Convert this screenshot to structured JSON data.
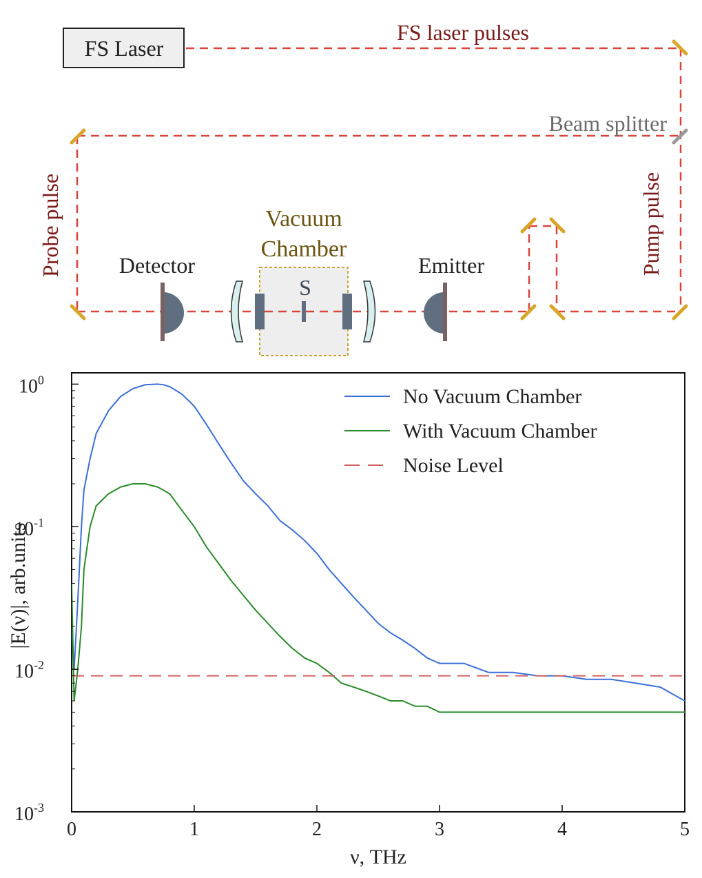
{
  "diagram": {
    "laser_box_label": "FS Laser",
    "fs_pulses_label": "FS laser pulses",
    "beam_splitter_label": "Beam splitter",
    "probe_pulse_label": "Probe pulse",
    "pump_pulse_label": "Pump pulse",
    "detector_label": "Detector",
    "emitter_label": "Emitter",
    "vacuum_label_line1": "Vacuum",
    "vacuum_label_line2": "Chamber",
    "sample_label": "S",
    "colors": {
      "beam": "#d9453b",
      "mirror": "#d9a528",
      "splitter": "#9a9a9a",
      "component": "#5f6f80",
      "chamber_border": "#c9a030",
      "chamber_fill": "#eeeeee",
      "lens": "#d9f0f0"
    }
  },
  "chart_data": {
    "type": "line",
    "xlabel": "ν, THz",
    "ylabel": "|E(ν)|, arb.units",
    "xlim": [
      0,
      5
    ],
    "ylim": [
      0.001,
      1.2
    ],
    "yscale": "log",
    "x_ticks": [
      "0",
      "1",
      "2",
      "3",
      "4",
      "5"
    ],
    "y_ticks": [
      {
        "base": "10",
        "exp": "0"
      },
      {
        "base": "10",
        "exp": "-1"
      },
      {
        "base": "10",
        "exp": "-2"
      },
      {
        "base": "10",
        "exp": "-3"
      }
    ],
    "legend_position": "top-right",
    "series": [
      {
        "name": "No Vacuum Chamber",
        "color": "#3b6fd8",
        "x": [
          0,
          0.02,
          0.05,
          0.08,
          0.1,
          0.15,
          0.2,
          0.3,
          0.4,
          0.5,
          0.6,
          0.7,
          0.75,
          0.8,
          0.9,
          1.0,
          1.1,
          1.2,
          1.3,
          1.4,
          1.5,
          1.6,
          1.7,
          1.8,
          1.9,
          2.0,
          2.1,
          2.2,
          2.3,
          2.4,
          2.5,
          2.6,
          2.7,
          2.8,
          2.9,
          3.0,
          3.2,
          3.4,
          3.6,
          3.8,
          4.0,
          4.2,
          4.4,
          4.6,
          4.8,
          5.0
        ],
        "values": [
          0.02,
          0.01,
          0.03,
          0.1,
          0.18,
          0.3,
          0.45,
          0.65,
          0.82,
          0.93,
          0.99,
          1.0,
          0.99,
          0.96,
          0.85,
          0.7,
          0.52,
          0.38,
          0.28,
          0.21,
          0.17,
          0.14,
          0.11,
          0.095,
          0.08,
          0.065,
          0.05,
          0.04,
          0.032,
          0.026,
          0.021,
          0.018,
          0.016,
          0.014,
          0.012,
          0.011,
          0.011,
          0.0095,
          0.0095,
          0.009,
          0.009,
          0.0085,
          0.0085,
          0.008,
          0.0075,
          0.006
        ]
      },
      {
        "name": "With Vacuum Chamber",
        "color": "#2a8a2a",
        "x": [
          0,
          0.02,
          0.05,
          0.08,
          0.1,
          0.15,
          0.2,
          0.3,
          0.4,
          0.5,
          0.6,
          0.7,
          0.75,
          0.8,
          0.9,
          1.0,
          1.1,
          1.2,
          1.3,
          1.4,
          1.5,
          1.6,
          1.7,
          1.8,
          1.9,
          2.0,
          2.1,
          2.2,
          2.3,
          2.4,
          2.5,
          2.6,
          2.7,
          2.8,
          2.9,
          3.0,
          3.2,
          3.4,
          3.6,
          3.8,
          4.0,
          4.2,
          4.4,
          4.6,
          4.8,
          5.0
        ],
        "values": [
          0.04,
          0.006,
          0.01,
          0.02,
          0.05,
          0.1,
          0.14,
          0.17,
          0.19,
          0.2,
          0.2,
          0.19,
          0.18,
          0.17,
          0.13,
          0.1,
          0.072,
          0.055,
          0.042,
          0.033,
          0.026,
          0.021,
          0.017,
          0.014,
          0.012,
          0.011,
          0.0095,
          0.008,
          0.0075,
          0.007,
          0.0065,
          0.006,
          0.006,
          0.0055,
          0.0055,
          0.005,
          0.005,
          0.005,
          0.005,
          0.005,
          0.005,
          0.005,
          0.005,
          0.005,
          0.005,
          0.005
        ]
      },
      {
        "name": "Noise Level",
        "color": "#d06060",
        "style": "dashed",
        "x": [
          0,
          5
        ],
        "values": [
          0.009,
          0.009
        ]
      }
    ]
  }
}
